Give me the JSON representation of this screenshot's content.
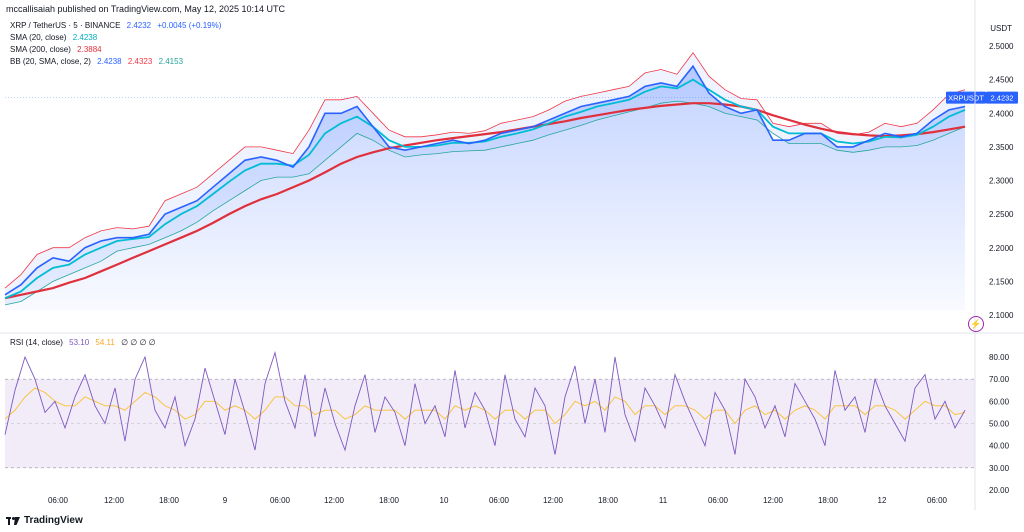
{
  "header": {
    "publish_line": "mccallisaiah published on TradingView.com, May 12, 2025 10:14 UTC"
  },
  "legend": {
    "symbol": "XRP / TetherUS · 5 · BINANCE",
    "symbol_price": "2.4232",
    "symbol_change": "+0.0045 (+0.19%)",
    "sma20_label": "SMA (20, close)",
    "sma20_value": "2.4238",
    "sma200_label": "SMA (200, close)",
    "sma200_value": "2.3884",
    "bb_label": "BB (20, SMA, close, 2)",
    "bb_basis": "2.4238",
    "bb_upper": "2.4323",
    "bb_lower": "2.4153"
  },
  "rsi_legend": {
    "label": "RSI (14, close)",
    "rsi_value": "53.10",
    "rsi_ma_value": "54.11",
    "empty": "∅ ∅ ∅ ∅"
  },
  "price_axis": {
    "currency": "USDT",
    "tag_symbol": "XRPUSDT",
    "tag_price": "2.4232"
  },
  "footer": {
    "brand": "TradingView"
  },
  "colors": {
    "price_line": "#2962ff",
    "sma20": "#00bcd4",
    "sma200": "#e0303c",
    "bb_upper": "#f23645",
    "bb_lower": "#26a69a",
    "rsi_line": "#7e57c2",
    "rsi_ma": "#fbc02d",
    "rsi_band": "#ede7f6"
  },
  "chart_data": [
    {
      "type": "line",
      "name": "price-panel",
      "x_ticks": [
        "06:00",
        "12:00",
        "18:00",
        "9",
        "06:00",
        "12:00",
        "18:00",
        "10",
        "06:00",
        "12:00",
        "18:00",
        "11",
        "06:00",
        "12:00",
        "18:00",
        "12",
        "06:00"
      ],
      "y_ticks": [
        "2.5000",
        "2.4500",
        "2.4000",
        "2.3500",
        "2.3000",
        "2.2500",
        "2.2000",
        "2.1500",
        "2.1000"
      ],
      "ylim": [
        2.1,
        2.505
      ],
      "x": [
        0,
        1,
        2,
        3,
        4,
        5,
        6,
        7,
        8,
        9,
        10,
        11,
        12,
        13,
        14,
        15,
        16,
        17,
        18,
        19,
        20,
        21,
        22,
        23,
        24,
        25,
        26,
        27,
        28,
        29,
        30,
        31,
        32,
        33,
        34,
        35,
        36,
        37,
        38,
        39,
        40,
        41,
        42,
        43,
        44,
        45,
        46,
        47,
        48,
        49,
        50,
        51,
        52,
        53,
        54,
        55,
        56,
        57,
        58,
        59,
        60
      ],
      "series": [
        {
          "name": "XRP / TetherUS",
          "values": [
            2.13,
            2.145,
            2.17,
            2.185,
            2.18,
            2.2,
            2.21,
            2.215,
            2.215,
            2.22,
            2.25,
            2.26,
            2.27,
            2.29,
            2.31,
            2.33,
            2.335,
            2.33,
            2.32,
            2.35,
            2.4,
            2.4,
            2.41,
            2.38,
            2.35,
            2.345,
            2.35,
            2.355,
            2.36,
            2.355,
            2.36,
            2.37,
            2.375,
            2.38,
            2.39,
            2.4,
            2.41,
            2.415,
            2.42,
            2.425,
            2.44,
            2.445,
            2.44,
            2.47,
            2.43,
            2.41,
            2.4,
            2.405,
            2.36,
            2.36,
            2.37,
            2.37,
            2.35,
            2.35,
            2.36,
            2.37,
            2.365,
            2.37,
            2.39,
            2.405,
            2.41
          ]
        },
        {
          "name": "SMA (20, close)",
          "values": [
            2.125,
            2.135,
            2.155,
            2.17,
            2.175,
            2.19,
            2.2,
            2.21,
            2.213,
            2.216,
            2.235,
            2.25,
            2.262,
            2.28,
            2.298,
            2.315,
            2.325,
            2.325,
            2.322,
            2.338,
            2.37,
            2.385,
            2.395,
            2.38,
            2.36,
            2.35,
            2.35,
            2.352,
            2.356,
            2.356,
            2.358,
            2.365,
            2.37,
            2.376,
            2.385,
            2.395,
            2.402,
            2.41,
            2.415,
            2.42,
            2.432,
            2.44,
            2.437,
            2.45,
            2.435,
            2.42,
            2.41,
            2.405,
            2.38,
            2.37,
            2.37,
            2.37,
            2.358,
            2.355,
            2.358,
            2.365,
            2.364,
            2.368,
            2.38,
            2.395,
            2.405
          ]
        },
        {
          "name": "SMA (200, close)",
          "values": [
            2.125,
            2.13,
            2.135,
            2.14,
            2.148,
            2.155,
            2.165,
            2.175,
            2.185,
            2.195,
            2.205,
            2.215,
            2.225,
            2.237,
            2.25,
            2.262,
            2.272,
            2.28,
            2.29,
            2.3,
            2.312,
            2.325,
            2.335,
            2.342,
            2.348,
            2.352,
            2.356,
            2.36,
            2.363,
            2.366,
            2.369,
            2.372,
            2.376,
            2.38,
            2.384,
            2.388,
            2.393,
            2.397,
            2.401,
            2.405,
            2.408,
            2.411,
            2.413,
            2.415,
            2.415,
            2.413,
            2.41,
            2.405,
            2.397,
            2.39,
            2.383,
            2.377,
            2.372,
            2.369,
            2.367,
            2.366,
            2.367,
            2.369,
            2.372,
            2.376,
            2.38
          ]
        },
        {
          "name": "BB upper",
          "values": [
            2.14,
            2.16,
            2.19,
            2.2,
            2.2,
            2.215,
            2.225,
            2.23,
            2.228,
            2.232,
            2.27,
            2.28,
            2.29,
            2.31,
            2.33,
            2.35,
            2.35,
            2.345,
            2.34,
            2.375,
            2.42,
            2.42,
            2.425,
            2.4,
            2.375,
            2.365,
            2.365,
            2.368,
            2.372,
            2.37,
            2.374,
            2.385,
            2.39,
            2.395,
            2.405,
            2.418,
            2.425,
            2.43,
            2.435,
            2.44,
            2.46,
            2.465,
            2.458,
            2.49,
            2.455,
            2.435,
            2.422,
            2.42,
            2.385,
            2.38,
            2.385,
            2.385,
            2.37,
            2.368,
            2.372,
            2.385,
            2.38,
            2.385,
            2.405,
            2.428,
            2.435
          ]
        },
        {
          "name": "BB lower",
          "values": [
            2.115,
            2.12,
            2.135,
            2.15,
            2.16,
            2.17,
            2.18,
            2.195,
            2.2,
            2.205,
            2.215,
            2.225,
            2.238,
            2.255,
            2.27,
            2.285,
            2.3,
            2.305,
            2.305,
            2.31,
            2.33,
            2.35,
            2.37,
            2.36,
            2.345,
            2.335,
            2.338,
            2.34,
            2.343,
            2.344,
            2.345,
            2.35,
            2.355,
            2.36,
            2.368,
            2.375,
            2.382,
            2.39,
            2.396,
            2.402,
            2.408,
            2.415,
            2.418,
            2.415,
            2.41,
            2.4,
            2.395,
            2.39,
            2.37,
            2.355,
            2.355,
            2.355,
            2.345,
            2.342,
            2.345,
            2.35,
            2.35,
            2.352,
            2.36,
            2.37,
            2.38
          ]
        }
      ]
    },
    {
      "type": "line",
      "name": "rsi-panel",
      "y_ticks": [
        "80.00",
        "70.00",
        "60.00",
        "50.00",
        "40.00",
        "30.00",
        "20.00"
      ],
      "ylim": [
        20,
        88
      ],
      "band": [
        30,
        70
      ],
      "midline": 50,
      "series": [
        {
          "name": "RSI (14, close)",
          "values": [
            45,
            65,
            80,
            70,
            55,
            60,
            48,
            62,
            72,
            58,
            50,
            66,
            42,
            70,
            80,
            56,
            48,
            62,
            40,
            52,
            75,
            60,
            45,
            70,
            55,
            38,
            68,
            82,
            60,
            48,
            72,
            44,
            66,
            50,
            38,
            58,
            72,
            46,
            62,
            55,
            40,
            68,
            50,
            58,
            44,
            74,
            48,
            64,
            56,
            40,
            72,
            52,
            44,
            66,
            58,
            36,
            62,
            76,
            50,
            70,
            46,
            80,
            54,
            42,
            66,
            58,
            48,
            72,
            60,
            50,
            40,
            64,
            56,
            36,
            70,
            62,
            48,
            58,
            44,
            68,
            60,
            52,
            40,
            74,
            56,
            62,
            46,
            70,
            58,
            50,
            42,
            66,
            72,
            52,
            60,
            48,
            56
          ]
        },
        {
          "name": "RSI MA",
          "values": [
            52,
            56,
            62,
            66,
            64,
            60,
            58,
            58,
            62,
            60,
            58,
            58,
            56,
            60,
            64,
            62,
            58,
            56,
            52,
            54,
            60,
            60,
            56,
            58,
            56,
            52,
            56,
            62,
            62,
            58,
            58,
            54,
            56,
            56,
            52,
            54,
            58,
            56,
            56,
            56,
            52,
            56,
            56,
            56,
            52,
            58,
            56,
            58,
            56,
            52,
            56,
            56,
            52,
            56,
            56,
            50,
            54,
            60,
            58,
            60,
            56,
            62,
            60,
            54,
            58,
            58,
            54,
            58,
            58,
            56,
            52,
            56,
            56,
            50,
            56,
            58,
            54,
            56,
            52,
            56,
            58,
            56,
            52,
            58,
            58,
            58,
            54,
            58,
            58,
            56,
            52,
            56,
            60,
            58,
            58,
            54,
            55
          ]
        }
      ]
    }
  ]
}
